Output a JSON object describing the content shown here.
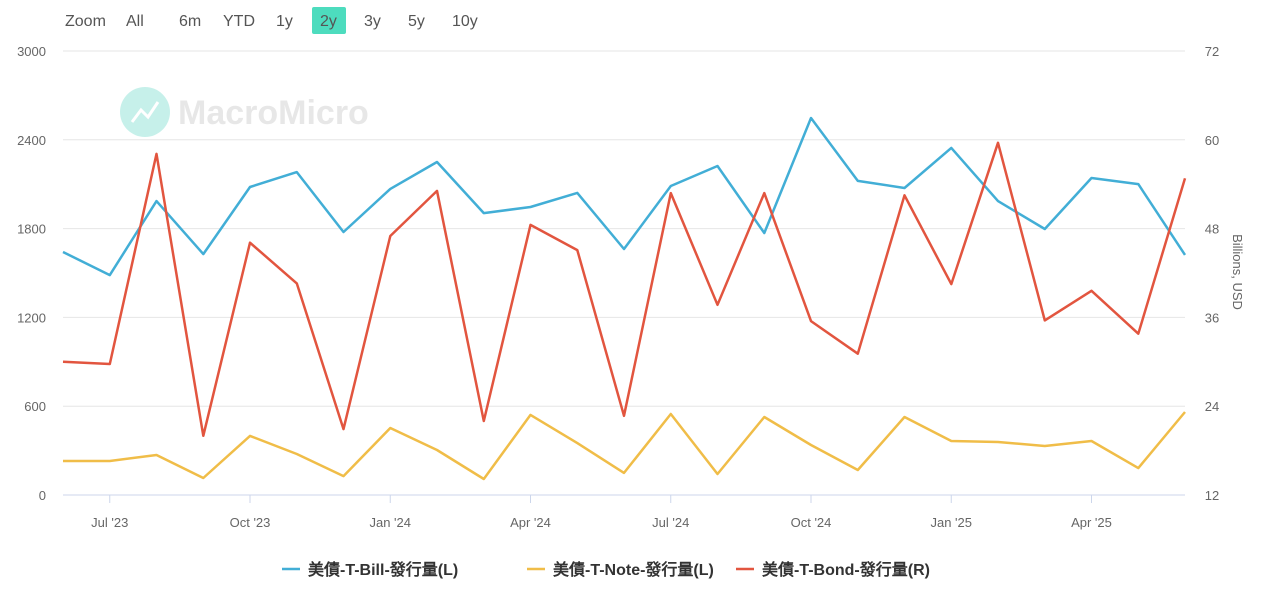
{
  "range_selector": {
    "label": "Zoom",
    "buttons": [
      "All",
      "6m",
      "YTD",
      "1y",
      "2y",
      "3y",
      "5y",
      "10y"
    ],
    "active": "2y"
  },
  "watermark": "MacroMicro",
  "chart_data": {
    "type": "line",
    "categories": [
      null,
      "Jul '23",
      null,
      null,
      "Oct '23",
      null,
      null,
      "Jan '24",
      null,
      null,
      "Apr '24",
      null,
      null,
      "Jul '24",
      null,
      null,
      "Oct '24",
      null,
      null,
      "Jan '25",
      null,
      null,
      "Apr '25",
      null,
      null
    ],
    "y_label": "Billions, USD",
    "y2_label": "Billions, USD",
    "ylim": [
      0,
      3000
    ],
    "yticks": [
      0,
      600,
      1200,
      1800,
      2400,
      3000
    ],
    "y2lim": [
      12,
      72
    ],
    "y2ticks": [
      12,
      24,
      36,
      48,
      60,
      72
    ],
    "grid": true,
    "legend": "bottom",
    "series": [
      {
        "name": "美債-T-Bill-發行量(L)",
        "color": "#42aed6",
        "values": [
          1642,
          1486,
          1986,
          1628,
          2081,
          2182,
          1777,
          2068,
          2250,
          1905,
          1946,
          2041,
          1662,
          2088,
          2223,
          1770,
          2547,
          2122,
          2074,
          2345,
          1986,
          1797,
          2142,
          2101,
          1622
        ]
      },
      {
        "name": "美債-T-Note-發行量(L)",
        "color": "#f0bd48",
        "values": [
          230,
          230,
          270,
          115,
          399,
          277,
          128,
          453,
          304,
          108,
          541,
          351,
          149,
          547,
          142,
          527,
          338,
          169,
          527,
          365,
          358,
          331,
          365,
          182,
          561
        ]
      },
      {
        "name": "美債-T-Bond-發行量(R)",
        "color": "#e2553f",
        "axis": "y2",
        "values": [
          30.0,
          29.7,
          58.1,
          20.0,
          46.1,
          40.6,
          20.9,
          47.0,
          53.1,
          22.0,
          48.5,
          45.1,
          22.7,
          52.8,
          37.7,
          52.8,
          35.5,
          31.1,
          52.5,
          40.5,
          59.6,
          35.6,
          39.6,
          33.8,
          54.8
        ]
      }
    ]
  }
}
